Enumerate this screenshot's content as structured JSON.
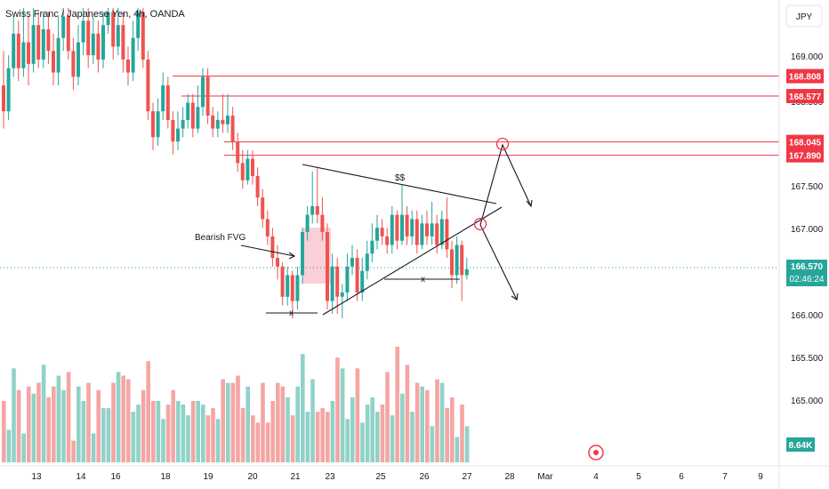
{
  "header": {
    "title": "Swiss Franc / Japanese Yen, 4h, OANDA",
    "currency": "JPY"
  },
  "colors": {
    "up": "#26a69a",
    "down": "#ef5350",
    "up_volume": "#90d2c8",
    "down_volume": "#f4a6a4",
    "level": "#f23645",
    "fvg": "#f9c4ce",
    "price_line": "#26a69a",
    "drawing": "#131722",
    "axis_text": "#131722"
  },
  "price_axis": {
    "ticks": [
      "169.000",
      "168.500",
      "167.500",
      "167.000",
      "166.000",
      "165.500",
      "165.000"
    ]
  },
  "levels": [
    {
      "value": 168.808,
      "label": "168.808"
    },
    {
      "value": 168.577,
      "label": "168.577"
    },
    {
      "value": 168.045,
      "label": "168.045"
    },
    {
      "value": 167.89,
      "label": "167.890"
    }
  ],
  "current": {
    "price": "166.570",
    "countdown": "02:46:24",
    "volume": "8.64K"
  },
  "annotations": {
    "fvg_label": "Bearish FVG",
    "liquidity_label": "$$",
    "equal_low_left": "x",
    "equal_low_right": "x"
  },
  "chart_data": {
    "type": "candlestick",
    "title": "Swiss Franc / Japanese Yen, 4h, OANDA",
    "ylim": [
      165.3,
      169.6
    ],
    "x_ticks": [
      "13",
      "14",
      "16",
      "18",
      "19",
      "20",
      "21",
      "23",
      "25",
      "26",
      "27",
      "28",
      "Mar",
      "4",
      "5",
      "6",
      "7",
      "9"
    ],
    "candles": [
      [
        168.7,
        168.4,
        169.1,
        168.2
      ],
      [
        168.4,
        168.9,
        169.05,
        168.3
      ],
      [
        168.9,
        169.3,
        169.5,
        168.8
      ],
      [
        169.3,
        168.9,
        169.45,
        168.75
      ],
      [
        168.9,
        169.2,
        169.6,
        168.8
      ],
      [
        169.2,
        168.95,
        169.5,
        168.7
      ],
      [
        168.95,
        169.4,
        169.6,
        168.85
      ],
      [
        169.4,
        169.0,
        169.55,
        168.9
      ],
      [
        169.0,
        169.35,
        169.55,
        168.9
      ],
      [
        169.35,
        169.1,
        169.55,
        168.95
      ],
      [
        169.1,
        168.85,
        169.3,
        168.7
      ],
      [
        168.85,
        169.25,
        169.5,
        168.7
      ],
      [
        169.25,
        169.5,
        169.6,
        169.1
      ],
      [
        169.5,
        169.1,
        169.6,
        169.0
      ],
      [
        169.1,
        168.8,
        169.25,
        168.65
      ],
      [
        168.8,
        169.2,
        169.4,
        168.7
      ],
      [
        169.2,
        169.45,
        169.6,
        169.05
      ],
      [
        169.45,
        169.05,
        169.6,
        168.9
      ],
      [
        169.05,
        169.3,
        169.5,
        168.95
      ],
      [
        169.3,
        169.0,
        169.45,
        168.85
      ],
      [
        169.0,
        169.4,
        169.55,
        168.9
      ],
      [
        169.4,
        169.55,
        169.6,
        169.3
      ],
      [
        169.55,
        169.15,
        169.6,
        169.0
      ],
      [
        169.15,
        169.4,
        169.6,
        169.05
      ],
      [
        169.4,
        169.0,
        169.55,
        168.85
      ],
      [
        169.0,
        168.85,
        169.15,
        168.7
      ],
      [
        168.85,
        169.25,
        169.45,
        168.75
      ],
      [
        169.25,
        169.55,
        169.6,
        169.1
      ],
      [
        169.55,
        169.0,
        169.6,
        168.9
      ],
      [
        169.0,
        168.4,
        169.1,
        168.3
      ],
      [
        168.4,
        168.1,
        168.5,
        167.95
      ],
      [
        168.1,
        168.4,
        168.55,
        168.0
      ],
      [
        168.4,
        168.7,
        168.85,
        168.3
      ],
      [
        168.7,
        168.3,
        168.8,
        168.2
      ],
      [
        168.3,
        168.05,
        168.4,
        167.9
      ],
      [
        168.05,
        168.2,
        168.4,
        167.95
      ],
      [
        168.2,
        168.3,
        168.45,
        168.1
      ],
      [
        168.3,
        168.5,
        168.6,
        168.2
      ],
      [
        168.5,
        168.2,
        168.6,
        168.1
      ],
      [
        168.2,
        168.45,
        168.7,
        168.15
      ],
      [
        168.45,
        168.8,
        168.9,
        168.35
      ],
      [
        168.8,
        168.35,
        168.9,
        168.25
      ],
      [
        168.35,
        168.2,
        168.45,
        168.1
      ],
      [
        168.2,
        168.3,
        168.4,
        168.1
      ],
      [
        168.3,
        168.25,
        168.6,
        168.15
      ],
      [
        168.25,
        168.35,
        168.6,
        168.15
      ],
      [
        168.35,
        168.05,
        168.45,
        167.95
      ],
      [
        168.05,
        167.8,
        168.15,
        167.7
      ],
      [
        167.8,
        167.6,
        167.95,
        167.5
      ],
      [
        167.6,
        167.85,
        167.95,
        167.55
      ],
      [
        167.85,
        167.65,
        167.95,
        167.55
      ],
      [
        167.65,
        167.4,
        167.75,
        167.3
      ],
      [
        167.4,
        167.15,
        167.5,
        167.05
      ],
      [
        167.15,
        166.95,
        167.25,
        166.85
      ],
      [
        166.95,
        166.7,
        167.05,
        166.6
      ],
      [
        166.7,
        166.6,
        166.85,
        166.45
      ],
      [
        166.6,
        166.25,
        166.65,
        166.15
      ],
      [
        166.25,
        166.5,
        166.6,
        166.15
      ],
      [
        166.5,
        166.2,
        166.55,
        166.0
      ],
      [
        166.2,
        166.5,
        166.6,
        166.1
      ],
      [
        166.5,
        167.0,
        167.05,
        166.4
      ],
      [
        167.0,
        167.2,
        167.3,
        166.9
      ],
      [
        167.2,
        167.3,
        167.7,
        167.1
      ],
      [
        167.3,
        167.2,
        167.75,
        167.1
      ],
      [
        167.2,
        167.0,
        167.4,
        166.9
      ],
      [
        167.0,
        166.2,
        167.1,
        166.1
      ],
      [
        166.2,
        166.6,
        166.75,
        166.05
      ],
      [
        166.6,
        166.25,
        166.7,
        166.05
      ],
      [
        166.25,
        166.3,
        166.4,
        166.0
      ],
      [
        166.3,
        166.6,
        166.75,
        166.2
      ],
      [
        166.6,
        166.7,
        166.85,
        166.5
      ],
      [
        166.7,
        166.3,
        166.8,
        166.2
      ],
      [
        166.3,
        166.55,
        166.7,
        166.2
      ],
      [
        166.55,
        166.75,
        166.9,
        166.45
      ],
      [
        166.75,
        166.9,
        167.1,
        166.65
      ],
      [
        166.9,
        167.05,
        167.2,
        166.8
      ],
      [
        167.05,
        166.95,
        167.15,
        166.85
      ],
      [
        166.95,
        166.85,
        167.05,
        166.75
      ],
      [
        166.85,
        167.2,
        167.3,
        166.75
      ],
      [
        167.2,
        166.9,
        167.25,
        166.8
      ],
      [
        166.9,
        167.2,
        167.55,
        166.85
      ],
      [
        167.2,
        166.95,
        167.3,
        166.85
      ],
      [
        166.95,
        167.15,
        167.25,
        166.85
      ],
      [
        167.15,
        166.85,
        167.25,
        166.75
      ],
      [
        166.85,
        167.1,
        167.2,
        166.8
      ],
      [
        167.1,
        166.95,
        167.25,
        166.85
      ],
      [
        166.95,
        167.1,
        167.35,
        166.85
      ],
      [
        167.1,
        166.85,
        167.2,
        166.75
      ],
      [
        166.85,
        167.15,
        167.25,
        166.8
      ],
      [
        167.15,
        166.8,
        167.4,
        166.7
      ],
      [
        166.8,
        166.5,
        166.9,
        166.35
      ],
      [
        166.5,
        166.85,
        166.95,
        166.4
      ],
      [
        166.85,
        166.5,
        166.9,
        166.2
      ],
      [
        166.5,
        166.57,
        166.7,
        166.45
      ]
    ],
    "volume": [
      17,
      9,
      26,
      20,
      8,
      21,
      19,
      22,
      27,
      18,
      21,
      24,
      20,
      25,
      6,
      21,
      17,
      22,
      8,
      20,
      15,
      15,
      22,
      25,
      24,
      23,
      14,
      16,
      20,
      28,
      17,
      17,
      12,
      16,
      20,
      17,
      16,
      13,
      17,
      17,
      16,
      13,
      15,
      12,
      23,
      22,
      22,
      24,
      15,
      21,
      13,
      11,
      22,
      11,
      17,
      22,
      21,
      18,
      13,
      21,
      30,
      14,
      23,
      14,
      15,
      14,
      17,
      29,
      26,
      12,
      18,
      26,
      11,
      16,
      18,
      14,
      16,
      25,
      13,
      32,
      19,
      27,
      14,
      22,
      21,
      20,
      10,
      23,
      22,
      15,
      18,
      7,
      16,
      10
    ]
  }
}
